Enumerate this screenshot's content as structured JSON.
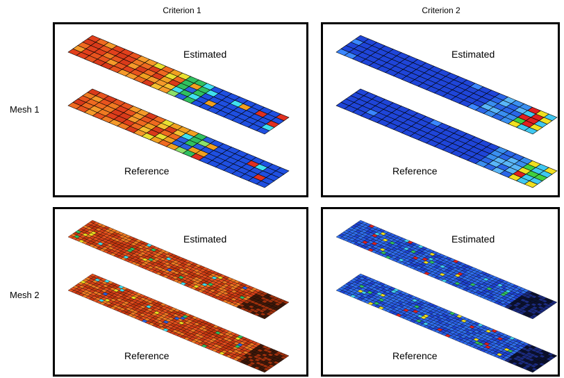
{
  "columns": [
    "Criterion 1",
    "Criterion 2"
  ],
  "rows": [
    "Mesh 1",
    "Mesh 2"
  ],
  "panels": [
    {
      "estimated": "Estimated",
      "reference": "Reference"
    },
    {
      "estimated": "Estimated",
      "reference": "Reference"
    },
    {
      "estimated": "Estimated",
      "reference": "Reference"
    },
    {
      "estimated": "Estimated",
      "reference": "Reference"
    }
  ]
}
